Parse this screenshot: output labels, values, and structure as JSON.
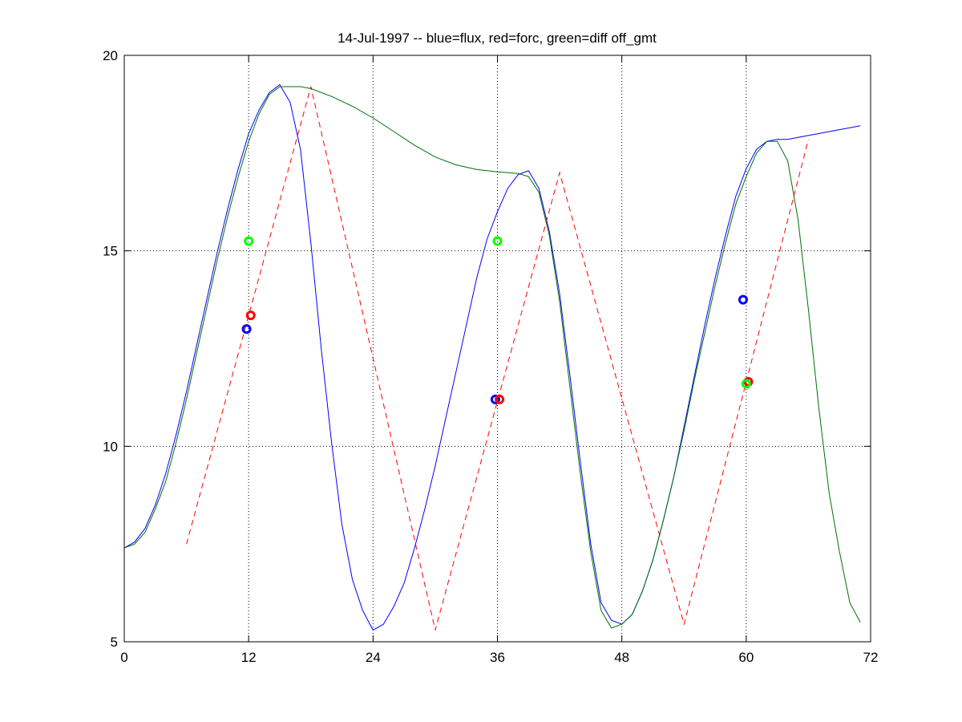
{
  "chart_data": {
    "type": "line",
    "title": "14-Jul-1997 -- blue=flux, red=forc, green=diff off_gmt",
    "xlabel": "",
    "ylabel": "",
    "xlim": [
      0,
      72
    ],
    "ylim": [
      5,
      20
    ],
    "xticks": [
      0,
      12,
      24,
      36,
      48,
      60,
      72
    ],
    "yticks": [
      5,
      10,
      15,
      20
    ],
    "grid": "dotted",
    "series": [
      {
        "color": "#0000ff",
        "style": "solid",
        "x": [
          0,
          1,
          2,
          3,
          4,
          5,
          6,
          7,
          8,
          9,
          10,
          11,
          12,
          13,
          14,
          15,
          16,
          17,
          18,
          19,
          20,
          21,
          22,
          23,
          24,
          25,
          26,
          27,
          28,
          29,
          30,
          31,
          32,
          33,
          34,
          35,
          36,
          37,
          38,
          39,
          40,
          41,
          42,
          43,
          44,
          45,
          46,
          47,
          48,
          49,
          50,
          51,
          52,
          53,
          54,
          55,
          56,
          57,
          58,
          59,
          60,
          61,
          62,
          63,
          64,
          65,
          66,
          67,
          68,
          69,
          70,
          71
        ],
        "y": [
          7.4,
          7.55,
          7.9,
          8.5,
          9.3,
          10.3,
          11.4,
          12.6,
          13.8,
          15.0,
          16.1,
          17.1,
          18.0,
          18.6,
          19.05,
          19.25,
          18.8,
          17.6,
          15.2,
          12.5,
          10.1,
          8.0,
          6.6,
          5.8,
          5.3,
          5.45,
          5.9,
          6.5,
          7.4,
          8.4,
          9.5,
          10.7,
          11.9,
          13.1,
          14.3,
          15.3,
          16.0,
          16.6,
          16.95,
          17.05,
          16.6,
          15.5,
          13.9,
          11.8,
          9.6,
          7.5,
          6.0,
          5.55,
          5.45,
          5.7,
          6.3,
          7.1,
          8.1,
          9.2,
          10.5,
          11.8,
          13.1,
          14.3,
          15.4,
          16.4,
          17.1,
          17.6,
          17.8,
          17.85,
          17.85,
          17.9,
          17.95,
          18.0,
          18.05,
          18.1,
          18.15,
          18.2
        ]
      },
      {
        "color": "#ff0000",
        "style": "dashed",
        "x": [
          6,
          18,
          30,
          42,
          54,
          66
        ],
        "y": [
          7.5,
          19.2,
          5.3,
          17.0,
          5.45,
          17.85
        ]
      },
      {
        "color": "#007000",
        "style": "solid",
        "x": [
          0,
          1,
          2,
          3,
          4,
          5,
          6,
          7,
          8,
          9,
          10,
          11,
          12,
          13,
          14,
          15,
          17,
          18,
          20,
          22,
          24,
          26,
          28,
          30,
          32,
          34,
          36,
          38,
          39,
          40,
          41,
          42,
          43,
          44,
          45,
          46,
          47,
          48,
          49,
          50,
          51,
          52,
          53,
          54,
          55,
          56,
          57,
          58,
          59,
          60,
          61,
          62,
          63,
          64,
          65,
          66,
          67,
          68,
          69,
          70,
          71
        ],
        "y": [
          7.4,
          7.5,
          7.8,
          8.4,
          9.1,
          10.1,
          11.2,
          12.4,
          13.6,
          14.8,
          15.9,
          16.9,
          17.8,
          18.5,
          19.0,
          19.2,
          19.2,
          19.15,
          18.95,
          18.7,
          18.4,
          18.05,
          17.7,
          17.4,
          17.2,
          17.08,
          17.02,
          16.98,
          16.9,
          16.5,
          15.4,
          13.7,
          11.5,
          9.3,
          7.3,
          5.8,
          5.35,
          5.45,
          5.7,
          6.3,
          7.1,
          8.1,
          9.2,
          10.4,
          11.7,
          12.9,
          14.1,
          15.2,
          16.2,
          16.9,
          17.5,
          17.8,
          17.8,
          17.3,
          15.8,
          13.5,
          11.0,
          8.8,
          7.3,
          6.0,
          5.5
        ]
      }
    ],
    "markers": [
      {
        "color": "#0000ff",
        "x": 11.8,
        "y": 13.0
      },
      {
        "color": "#ff0000",
        "x": 12.2,
        "y": 13.35
      },
      {
        "color": "#00ff00",
        "x": 12.0,
        "y": 15.25
      },
      {
        "color": "#0000ff",
        "x": 35.8,
        "y": 11.2
      },
      {
        "color": "#ff0000",
        "x": 36.2,
        "y": 11.2
      },
      {
        "color": "#00ff00",
        "x": 36.0,
        "y": 15.25
      },
      {
        "color": "#0000ff",
        "x": 59.7,
        "y": 13.75
      },
      {
        "color": "#ff0000",
        "x": 60.2,
        "y": 11.65
      },
      {
        "color": "#00ff00",
        "x": 60.0,
        "y": 11.6
      }
    ]
  }
}
